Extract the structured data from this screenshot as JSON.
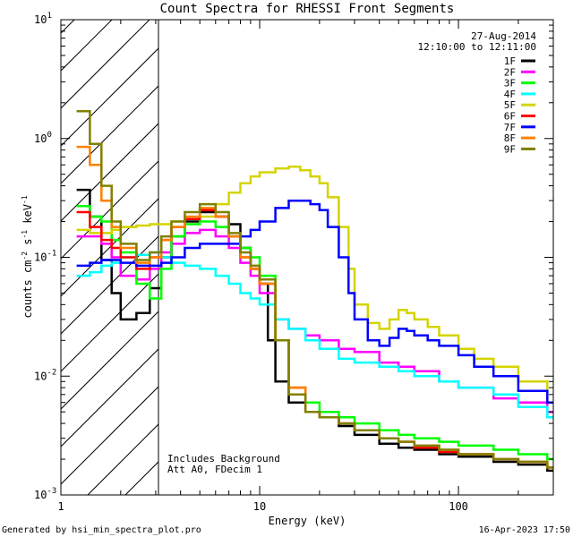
{
  "chart_data": {
    "type": "line",
    "title": "Count Spectra for RHESSI Front Segments",
    "xlabel": "Energy (keV)",
    "ylabel_parts": {
      "base": "counts cm",
      "exp1": "-2",
      "mid": " s",
      "exp2": "-1",
      "unit": " keV",
      "exp3": "-1"
    },
    "x_scale": "log",
    "y_scale": "log",
    "xlim": [
      1,
      300
    ],
    "ylim": [
      0.001,
      10
    ],
    "x_ticks": [
      {
        "value": 1,
        "label": "1"
      },
      {
        "value": 10,
        "label": "10"
      },
      {
        "value": 100,
        "label": "100"
      }
    ],
    "y_ticks": [
      {
        "value": 10,
        "base": "10",
        "exp": "1"
      },
      {
        "value": 1,
        "base": "10",
        "exp": "0"
      },
      {
        "value": 0.1,
        "base": "10",
        "exp": "-1"
      },
      {
        "value": 0.01,
        "base": "10",
        "exp": "-2"
      },
      {
        "value": 0.001,
        "base": "10",
        "exp": "-3"
      }
    ],
    "excluded_region": {
      "from": 1,
      "to": 3,
      "style": "hatched"
    },
    "date_label": "27-Aug-2014",
    "time_label": "12:10:00 to 12:11:00",
    "notes": [
      "Includes Background",
      "Att A0, FDecim 1"
    ],
    "series": [
      {
        "name": "1F",
        "color": "#000000",
        "points": [
          [
            1.2,
            0.37
          ],
          [
            1.4,
            0.22
          ],
          [
            1.6,
            0.095
          ],
          [
            1.8,
            0.05
          ],
          [
            2.0,
            0.03
          ],
          [
            2.4,
            0.034
          ],
          [
            2.8,
            0.055
          ],
          [
            3.2,
            0.1
          ],
          [
            3.6,
            0.15
          ],
          [
            4.2,
            0.2
          ],
          [
            5,
            0.24
          ],
          [
            6,
            0.22
          ],
          [
            7,
            0.19
          ],
          [
            8,
            0.12
          ],
          [
            9,
            0.08
          ],
          [
            10,
            0.06
          ],
          [
            11,
            0.02
          ],
          [
            12,
            0.009
          ],
          [
            14,
            0.006
          ],
          [
            17,
            0.005
          ],
          [
            20,
            0.0045
          ],
          [
            25,
            0.0038
          ],
          [
            30,
            0.0032
          ],
          [
            40,
            0.0027
          ],
          [
            50,
            0.0025
          ],
          [
            60,
            0.0024
          ],
          [
            80,
            0.0022
          ],
          [
            100,
            0.0021
          ],
          [
            150,
            0.0019
          ],
          [
            200,
            0.0018
          ],
          [
            280,
            0.0016
          ]
        ]
      },
      {
        "name": "2F",
        "color": "#ff00ff",
        "points": [
          [
            1.2,
            0.15
          ],
          [
            1.4,
            0.15
          ],
          [
            1.6,
            0.13
          ],
          [
            1.8,
            0.1
          ],
          [
            2.0,
            0.07
          ],
          [
            2.4,
            0.065
          ],
          [
            2.8,
            0.08
          ],
          [
            3.2,
            0.11
          ],
          [
            3.6,
            0.13
          ],
          [
            4.2,
            0.16
          ],
          [
            5,
            0.17
          ],
          [
            6,
            0.15
          ],
          [
            7,
            0.12
          ],
          [
            8,
            0.09
          ],
          [
            9,
            0.07
          ],
          [
            10,
            0.05
          ],
          [
            12,
            0.03
          ],
          [
            14,
            0.025
          ],
          [
            17,
            0.022
          ],
          [
            20,
            0.02
          ],
          [
            25,
            0.017
          ],
          [
            30,
            0.016
          ],
          [
            40,
            0.013
          ],
          [
            50,
            0.012
          ],
          [
            60,
            0.011
          ],
          [
            80,
            0.009
          ],
          [
            100,
            0.008
          ],
          [
            150,
            0.0065
          ],
          [
            200,
            0.006
          ],
          [
            280,
            0.005
          ]
        ]
      },
      {
        "name": "3F",
        "color": "#00ff00",
        "points": [
          [
            1.2,
            0.27
          ],
          [
            1.4,
            0.22
          ],
          [
            1.6,
            0.2
          ],
          [
            1.8,
            0.14
          ],
          [
            2.0,
            0.11
          ],
          [
            2.4,
            0.06
          ],
          [
            2.8,
            0.045
          ],
          [
            3.2,
            0.08
          ],
          [
            3.6,
            0.15
          ],
          [
            4.2,
            0.19
          ],
          [
            5,
            0.2
          ],
          [
            6,
            0.18
          ],
          [
            7,
            0.15
          ],
          [
            8,
            0.12
          ],
          [
            9,
            0.1
          ],
          [
            10,
            0.07
          ],
          [
            12,
            0.02
          ],
          [
            14,
            0.008
          ],
          [
            17,
            0.006
          ],
          [
            20,
            0.005
          ],
          [
            25,
            0.0045
          ],
          [
            30,
            0.004
          ],
          [
            40,
            0.0035
          ],
          [
            50,
            0.0032
          ],
          [
            60,
            0.003
          ],
          [
            80,
            0.0028
          ],
          [
            100,
            0.0026
          ],
          [
            150,
            0.0024
          ],
          [
            200,
            0.0022
          ],
          [
            280,
            0.002
          ]
        ]
      },
      {
        "name": "4F",
        "color": "#00ffff",
        "points": [
          [
            1.2,
            0.07
          ],
          [
            1.4,
            0.075
          ],
          [
            1.6,
            0.085
          ],
          [
            1.8,
            0.09
          ],
          [
            2.0,
            0.1
          ],
          [
            2.4,
            0.105
          ],
          [
            2.8,
            0.11
          ],
          [
            3.2,
            0.1
          ],
          [
            3.6,
            0.09
          ],
          [
            4.2,
            0.085
          ],
          [
            5,
            0.08
          ],
          [
            6,
            0.07
          ],
          [
            7,
            0.06
          ],
          [
            8,
            0.05
          ],
          [
            9,
            0.045
          ],
          [
            10,
            0.04
          ],
          [
            12,
            0.03
          ],
          [
            14,
            0.025
          ],
          [
            17,
            0.02
          ],
          [
            20,
            0.017
          ],
          [
            25,
            0.014
          ],
          [
            30,
            0.013
          ],
          [
            40,
            0.012
          ],
          [
            50,
            0.011
          ],
          [
            60,
            0.01
          ],
          [
            80,
            0.009
          ],
          [
            100,
            0.008
          ],
          [
            150,
            0.007
          ],
          [
            200,
            0.0055
          ],
          [
            280,
            0.0045
          ]
        ]
      },
      {
        "name": "5F",
        "color": "#d4d400",
        "points": [
          [
            1.2,
            0.17
          ],
          [
            1.4,
            0.16
          ],
          [
            1.6,
            0.16
          ],
          [
            1.8,
            0.17
          ],
          [
            2.0,
            0.18
          ],
          [
            2.4,
            0.185
          ],
          [
            2.8,
            0.19
          ],
          [
            3.2,
            0.19
          ],
          [
            3.6,
            0.2
          ],
          [
            4.2,
            0.21
          ],
          [
            5,
            0.22
          ],
          [
            6,
            0.28
          ],
          [
            7,
            0.35
          ],
          [
            8,
            0.42
          ],
          [
            9,
            0.48
          ],
          [
            10,
            0.52
          ],
          [
            12,
            0.56
          ],
          [
            14,
            0.58
          ],
          [
            16,
            0.54
          ],
          [
            18,
            0.48
          ],
          [
            20,
            0.42
          ],
          [
            22,
            0.32
          ],
          [
            25,
            0.18
          ],
          [
            28,
            0.08
          ],
          [
            30,
            0.04
          ],
          [
            35,
            0.028
          ],
          [
            40,
            0.025
          ],
          [
            45,
            0.03
          ],
          [
            50,
            0.036
          ],
          [
            55,
            0.034
          ],
          [
            60,
            0.03
          ],
          [
            70,
            0.026
          ],
          [
            80,
            0.022
          ],
          [
            100,
            0.017
          ],
          [
            120,
            0.014
          ],
          [
            150,
            0.012
          ],
          [
            200,
            0.009
          ],
          [
            280,
            0.006
          ]
        ]
      },
      {
        "name": "6F",
        "color": "#ff0000",
        "points": [
          [
            1.2,
            0.24
          ],
          [
            1.4,
            0.18
          ],
          [
            1.6,
            0.14
          ],
          [
            1.8,
            0.12
          ],
          [
            2.0,
            0.1
          ],
          [
            2.4,
            0.08
          ],
          [
            2.8,
            0.1
          ],
          [
            3.2,
            0.14
          ],
          [
            3.6,
            0.18
          ],
          [
            4.2,
            0.21
          ],
          [
            5,
            0.25
          ],
          [
            6,
            0.22
          ],
          [
            7,
            0.15
          ],
          [
            8,
            0.1
          ],
          [
            9,
            0.08
          ],
          [
            10,
            0.06
          ],
          [
            12,
            0.02
          ],
          [
            14,
            0.008
          ],
          [
            17,
            0.005
          ],
          [
            20,
            0.0045
          ],
          [
            25,
            0.004
          ],
          [
            30,
            0.0035
          ],
          [
            40,
            0.003
          ],
          [
            50,
            0.0028
          ],
          [
            60,
            0.0025
          ],
          [
            80,
            0.0023
          ],
          [
            100,
            0.0022
          ],
          [
            150,
            0.002
          ],
          [
            200,
            0.0019
          ],
          [
            280,
            0.0017
          ]
        ]
      },
      {
        "name": "7F",
        "color": "#0000ff",
        "points": [
          [
            1.2,
            0.085
          ],
          [
            1.4,
            0.09
          ],
          [
            1.6,
            0.095
          ],
          [
            1.8,
            0.095
          ],
          [
            2.0,
            0.09
          ],
          [
            2.4,
            0.085
          ],
          [
            2.8,
            0.085
          ],
          [
            3.2,
            0.09
          ],
          [
            3.6,
            0.1
          ],
          [
            4.2,
            0.12
          ],
          [
            5,
            0.13
          ],
          [
            6,
            0.13
          ],
          [
            7,
            0.13
          ],
          [
            8,
            0.15
          ],
          [
            9,
            0.17
          ],
          [
            10,
            0.2
          ],
          [
            12,
            0.26
          ],
          [
            14,
            0.3
          ],
          [
            16,
            0.3
          ],
          [
            18,
            0.28
          ],
          [
            20,
            0.25
          ],
          [
            22,
            0.18
          ],
          [
            25,
            0.1
          ],
          [
            28,
            0.05
          ],
          [
            30,
            0.03
          ],
          [
            35,
            0.02
          ],
          [
            40,
            0.018
          ],
          [
            45,
            0.021
          ],
          [
            50,
            0.025
          ],
          [
            55,
            0.024
          ],
          [
            60,
            0.022
          ],
          [
            70,
            0.02
          ],
          [
            80,
            0.018
          ],
          [
            100,
            0.015
          ],
          [
            120,
            0.012
          ],
          [
            150,
            0.01
          ],
          [
            200,
            0.0075
          ],
          [
            280,
            0.006
          ]
        ]
      },
      {
        "name": "8F",
        "color": "#ff8000",
        "points": [
          [
            1.2,
            0.85
          ],
          [
            1.4,
            0.6
          ],
          [
            1.6,
            0.3
          ],
          [
            1.8,
            0.18
          ],
          [
            2.0,
            0.12
          ],
          [
            2.4,
            0.09
          ],
          [
            2.8,
            0.1
          ],
          [
            3.2,
            0.14
          ],
          [
            3.6,
            0.18
          ],
          [
            4.2,
            0.22
          ],
          [
            5,
            0.26
          ],
          [
            6,
            0.22
          ],
          [
            7,
            0.15
          ],
          [
            8,
            0.1
          ],
          [
            9,
            0.08
          ],
          [
            10,
            0.06
          ],
          [
            12,
            0.02
          ],
          [
            14,
            0.008
          ],
          [
            17,
            0.005
          ],
          [
            20,
            0.0045
          ],
          [
            25,
            0.004
          ],
          [
            30,
            0.0035
          ],
          [
            40,
            0.003
          ],
          [
            50,
            0.0028
          ],
          [
            60,
            0.0026
          ],
          [
            80,
            0.0024
          ],
          [
            100,
            0.0022
          ],
          [
            150,
            0.002
          ],
          [
            200,
            0.0019
          ],
          [
            280,
            0.0017
          ]
        ]
      },
      {
        "name": "9F",
        "color": "#808000",
        "points": [
          [
            1.2,
            1.7
          ],
          [
            1.4,
            0.9
          ],
          [
            1.6,
            0.4
          ],
          [
            1.8,
            0.2
          ],
          [
            2.0,
            0.13
          ],
          [
            2.4,
            0.095
          ],
          [
            2.8,
            0.11
          ],
          [
            3.2,
            0.15
          ],
          [
            3.6,
            0.2
          ],
          [
            4.2,
            0.24
          ],
          [
            5,
            0.28
          ],
          [
            6,
            0.24
          ],
          [
            7,
            0.16
          ],
          [
            8,
            0.11
          ],
          [
            9,
            0.085
          ],
          [
            10,
            0.065
          ],
          [
            12,
            0.02
          ],
          [
            14,
            0.007
          ],
          [
            17,
            0.005
          ],
          [
            20,
            0.0045
          ],
          [
            25,
            0.004
          ],
          [
            30,
            0.0035
          ],
          [
            40,
            0.003
          ],
          [
            50,
            0.0028
          ],
          [
            60,
            0.0026
          ],
          [
            80,
            0.0024
          ],
          [
            100,
            0.0022
          ],
          [
            150,
            0.002
          ],
          [
            200,
            0.0019
          ],
          [
            280,
            0.0017
          ]
        ]
      }
    ]
  },
  "footer": {
    "generated_by": "Generated by hsi_min_spectra_plot.pro",
    "timestamp": "16-Apr-2023 17:50"
  }
}
